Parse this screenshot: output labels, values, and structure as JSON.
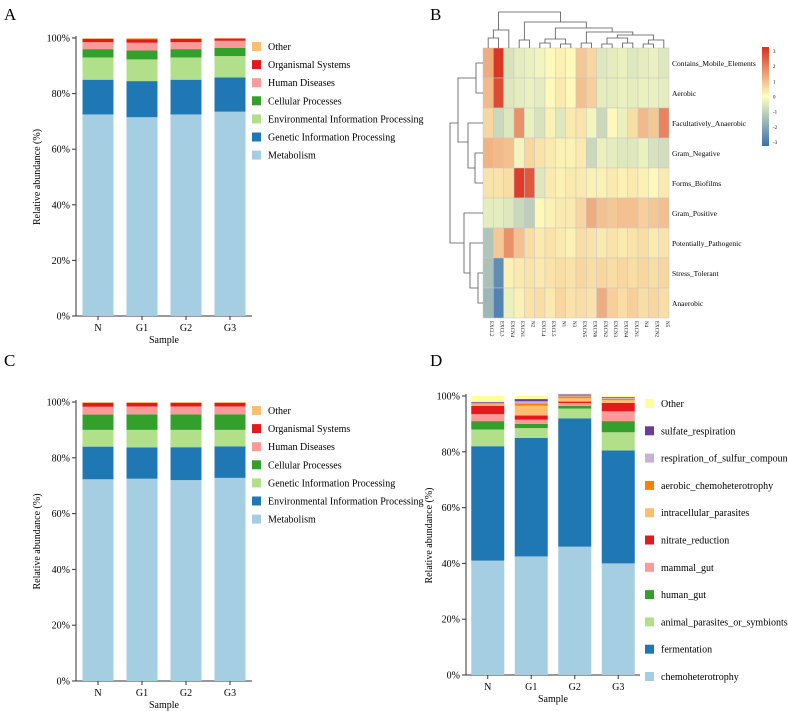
{
  "panel_labels": [
    "A",
    "B",
    "C",
    "D"
  ],
  "colors": {
    "metabolism": "#a6cee3",
    "dark_blue": "#1f78b4",
    "light_green": "#b2df8a",
    "green": "#33a02c",
    "pink": "#fb9a99",
    "red": "#e31a1c",
    "light_orange": "#fdbf6f",
    "orange": "#ff7f00",
    "lavender": "#cab2d6",
    "purple": "#6a3d9a",
    "pale_yellow": "#ffff99"
  },
  "chart_data": [
    {
      "panel": "A",
      "type": "bar",
      "stacked": true,
      "xlabel": "Sample",
      "ylabel": "Relative abundance (%)",
      "ylim": [
        0,
        100
      ],
      "yticks": [
        "0%",
        "20%",
        "40%",
        "60%",
        "80%",
        "100%"
      ],
      "categories": [
        "N",
        "G1",
        "G2",
        "G3"
      ],
      "series": [
        {
          "name": "Metabolism",
          "color": "#a6cee3",
          "values": [
            72.5,
            71.5,
            72.5,
            73.5
          ]
        },
        {
          "name": "Genetic Information Processing",
          "color": "#1f78b4",
          "values": [
            12.5,
            13.0,
            12.5,
            12.3
          ]
        },
        {
          "name": "Environmental Information Processing",
          "color": "#b2df8a",
          "values": [
            8.0,
            7.8,
            8.0,
            7.7
          ]
        },
        {
          "name": "Cellular Processes",
          "color": "#33a02c",
          "values": [
            3.0,
            3.2,
            3.0,
            3.0
          ]
        },
        {
          "name": "Human Diseases",
          "color": "#fb9a99",
          "values": [
            2.5,
            2.8,
            2.5,
            2.5
          ]
        },
        {
          "name": "Organismal Systems",
          "color": "#e31a1c",
          "values": [
            1.2,
            1.3,
            1.2,
            0.8
          ]
        },
        {
          "name": "Other",
          "color": "#fdbf6f",
          "values": [
            0.3,
            0.4,
            0.3,
            0.2
          ]
        }
      ]
    },
    {
      "panel": "B",
      "type": "heatmap",
      "rows": [
        "Contains_Mobile_Elements",
        "Aerobic",
        "Facultatively_Anaerobic",
        "Gram_Negative",
        "Forms_Biofilms",
        "Gram_Positive",
        "Potentially_Pathogenic",
        "Stress_Tolerant",
        "Anaerobic"
      ],
      "columns": [
        "EXCL2",
        "EXCL3",
        "EXCN4",
        "EXCN1",
        "N2",
        "EXCL4",
        "EXCL5",
        "N1",
        "N3",
        "EXCN5",
        "EXCN6",
        "EXCN2",
        "EXCN3",
        "EXCN4",
        "EXCN1",
        "N4",
        "EXCN2",
        "N5"
      ],
      "colorbar": {
        "min": -3,
        "max": 3,
        "ticks": [
          "3",
          "2",
          "1",
          "0",
          "-1",
          "-2",
          "-3"
        ],
        "colors": [
          "#3a6fb0",
          "#ffffbf",
          "#d7301f"
        ]
      },
      "values": [
        [
          1.2,
          2.9,
          -0.6,
          -0.4,
          -0.3,
          -0.2,
          0.1,
          0.2,
          0.1,
          0.8,
          0.6,
          -0.5,
          -0.4,
          -0.3,
          -0.5,
          -0.4,
          -0.3,
          -0.5
        ],
        [
          1.0,
          2.6,
          -0.5,
          -0.4,
          -0.3,
          -0.4,
          0.1,
          0.3,
          0.1,
          0.9,
          0.7,
          -0.4,
          -0.4,
          -0.3,
          -0.4,
          -0.3,
          -0.3,
          -0.4
        ],
        [
          0.6,
          -0.8,
          -0.5,
          1.6,
          -0.3,
          -0.6,
          0.2,
          -0.5,
          0.3,
          0.4,
          -0.2,
          -0.8,
          0.1,
          -0.3,
          0.5,
          1.0,
          0.8,
          1.8
        ],
        [
          1.1,
          1.0,
          0.9,
          -0.2,
          0.6,
          0.4,
          0.3,
          0.2,
          0.2,
          0.3,
          -0.8,
          -0.3,
          -0.4,
          -0.5,
          -0.5,
          -0.3,
          -0.6,
          -0.7
        ],
        [
          0.4,
          0.4,
          0.5,
          2.8,
          2.4,
          -0.5,
          0.3,
          0.2,
          0.3,
          0.3,
          0.2,
          0.2,
          0.3,
          0.2,
          0.3,
          0.2,
          0.1,
          0.3
        ],
        [
          -0.4,
          -0.4,
          -0.5,
          -0.8,
          -1.0,
          0.1,
          0.2,
          0.3,
          0.3,
          0.6,
          1.2,
          0.9,
          0.8,
          0.9,
          0.9,
          0.7,
          0.8,
          0.9
        ],
        [
          -1.2,
          0.8,
          1.6,
          0.9,
          0.5,
          0.3,
          0.4,
          0.3,
          0.2,
          0.5,
          0.4,
          0.3,
          0.4,
          0.3,
          0.4,
          0.5,
          0.3,
          0.4
        ],
        [
          -1.3,
          -2.4,
          0.2,
          0.3,
          0.4,
          0.3,
          0.4,
          0.5,
          0.4,
          0.6,
          0.5,
          0.6,
          0.5,
          0.6,
          0.5,
          0.6,
          0.5,
          0.6
        ],
        [
          -1.5,
          -2.6,
          -0.3,
          0.2,
          0.4,
          0.5,
          0.3,
          0.6,
          0.4,
          0.5,
          0.4,
          1.2,
          0.7,
          0.5,
          0.7,
          0.5,
          0.6,
          0.5
        ]
      ]
    },
    {
      "panel": "C",
      "type": "bar",
      "stacked": true,
      "xlabel": "Sample",
      "ylabel": "Relative abundance (%)",
      "ylim": [
        0,
        100
      ],
      "yticks": [
        "0%",
        "20%",
        "40%",
        "60%",
        "80%",
        "100%"
      ],
      "categories": [
        "N",
        "G1",
        "G2",
        "G3"
      ],
      "series": [
        {
          "name": "Metabolism",
          "color": "#a6cee3",
          "values": [
            72.3,
            72.5,
            72.0,
            72.8
          ]
        },
        {
          "name": "Environmental Information Processing",
          "color": "#1f78b4",
          "values": [
            11.7,
            11.2,
            11.8,
            11.3
          ]
        },
        {
          "name": "Genetic Information Processing",
          "color": "#b2df8a",
          "values": [
            6.0,
            6.3,
            6.2,
            5.9
          ]
        },
        {
          "name": "Cellular Processes",
          "color": "#33a02c",
          "values": [
            5.5,
            5.6,
            5.6,
            5.6
          ]
        },
        {
          "name": "Human Diseases",
          "color": "#fb9a99",
          "values": [
            2.8,
            2.8,
            2.8,
            2.8
          ]
        },
        {
          "name": "Organismal Systems",
          "color": "#e31a1c",
          "values": [
            1.4,
            1.3,
            1.3,
            1.3
          ]
        },
        {
          "name": "Other",
          "color": "#fdbf6f",
          "values": [
            0.3,
            0.3,
            0.3,
            0.3
          ]
        }
      ]
    },
    {
      "panel": "D",
      "type": "bar",
      "stacked": true,
      "xlabel": "Sample",
      "ylabel": "Relative abundance (%)",
      "ylim": [
        0,
        100
      ],
      "yticks": [
        "0%",
        "20%",
        "40%",
        "60%",
        "80%",
        "100%"
      ],
      "categories": [
        "N",
        "G1",
        "G2",
        "G3"
      ],
      "series": [
        {
          "name": "chemoheterotrophy",
          "color": "#a6cee3",
          "values": [
            41.0,
            42.5,
            46.0,
            40.0
          ]
        },
        {
          "name": "fermentation",
          "color": "#1f78b4",
          "values": [
            41.0,
            42.5,
            46.0,
            40.5
          ]
        },
        {
          "name": "animal_parasites_or_symbionts",
          "color": "#b2df8a",
          "values": [
            6.0,
            3.5,
            3.5,
            6.5
          ]
        },
        {
          "name": "human_gut",
          "color": "#33a02c",
          "values": [
            3.0,
            1.5,
            1.0,
            4.0
          ]
        },
        {
          "name": "mammal_gut",
          "color": "#fb9a99",
          "values": [
            2.5,
            1.5,
            1.0,
            3.5
          ]
        },
        {
          "name": "nitrate_reduction",
          "color": "#e31a1c",
          "values": [
            3.0,
            1.5,
            0.5,
            3.0
          ]
        },
        {
          "name": "intracellular_parasites",
          "color": "#fdbf6f",
          "values": [
            0.5,
            3.5,
            1.2,
            1.0
          ]
        },
        {
          "name": "aerobic_chemoheterotrophy",
          "color": "#ff7f00",
          "values": [
            0.3,
            0.8,
            0.6,
            0.5
          ]
        },
        {
          "name": "respiration_of_sulfur_compounds",
          "color": "#cab2d6",
          "values": [
            0.3,
            0.8,
            0.4,
            0.3
          ]
        },
        {
          "name": "sulfate_respiration",
          "color": "#6a3d9a",
          "values": [
            0.3,
            0.8,
            0.4,
            0.3
          ]
        },
        {
          "name": "Other",
          "color": "#ffff99",
          "values": [
            2.1,
            1.1,
            0.4,
            0.4
          ]
        }
      ]
    }
  ]
}
